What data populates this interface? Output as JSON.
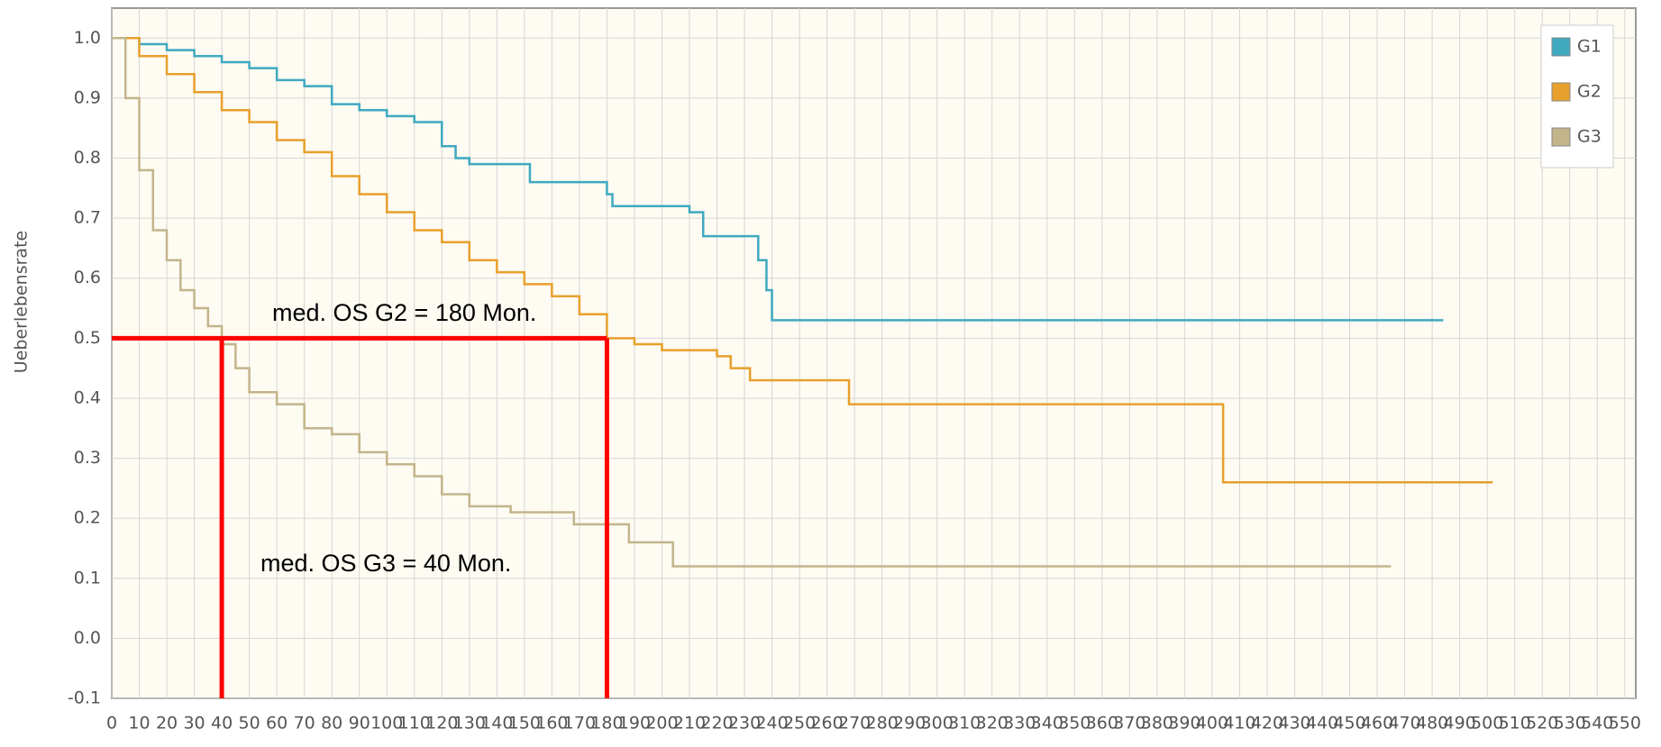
{
  "chart_data": {
    "type": "line",
    "y_label": "Ueberlebensrate",
    "xlim": [
      0,
      554
    ],
    "ylim": [
      -0.1,
      1.05
    ],
    "xticks": [
      0,
      10,
      20,
      30,
      40,
      50,
      60,
      70,
      80,
      90,
      100,
      110,
      120,
      130,
      140,
      150,
      160,
      170,
      180,
      190,
      200,
      210,
      220,
      230,
      240,
      250,
      260,
      270,
      280,
      290,
      300,
      310,
      320,
      330,
      340,
      350,
      360,
      370,
      380,
      390,
      400,
      410,
      420,
      430,
      440,
      450,
      460,
      470,
      480,
      490,
      500,
      510,
      520,
      530,
      540,
      550
    ],
    "yticks": [
      -0.1,
      {
        "value": 0,
        "label": "0.0"
      },
      0.1,
      0.2,
      0.3,
      0.4,
      0.5,
      0.6,
      0.7,
      0.8,
      0.9,
      {
        "value": 1,
        "label": "1.0"
      }
    ],
    "grid": true,
    "legend": "top-right",
    "step": true,
    "series": [
      {
        "name": "G1",
        "color": "#3fa9c0",
        "x": [
          0,
          10,
          20,
          30,
          40,
          50,
          60,
          70,
          80,
          90,
          100,
          110,
          120,
          125,
          130,
          150,
          152,
          170,
          180,
          182,
          210,
          215,
          230,
          235,
          238,
          240,
          484
        ],
        "values": [
          1.0,
          0.99,
          0.98,
          0.97,
          0.96,
          0.95,
          0.93,
          0.92,
          0.89,
          0.88,
          0.87,
          0.86,
          0.82,
          0.8,
          0.79,
          0.79,
          0.76,
          0.76,
          0.74,
          0.72,
          0.71,
          0.67,
          0.67,
          0.63,
          0.58,
          0.53,
          0.53
        ]
      },
      {
        "name": "G2",
        "color": "#e8a02c",
        "x": [
          0,
          10,
          20,
          30,
          40,
          50,
          60,
          70,
          80,
          90,
          100,
          110,
          120,
          130,
          140,
          150,
          160,
          170,
          180,
          190,
          200,
          220,
          225,
          232,
          266,
          268,
          403,
          404,
          502
        ],
        "values": [
          1.0,
          0.97,
          0.94,
          0.91,
          0.88,
          0.86,
          0.83,
          0.81,
          0.77,
          0.74,
          0.71,
          0.68,
          0.66,
          0.63,
          0.61,
          0.59,
          0.57,
          0.54,
          0.5,
          0.49,
          0.48,
          0.47,
          0.45,
          0.43,
          0.43,
          0.39,
          0.39,
          0.26,
          0.26
        ]
      },
      {
        "name": "G3",
        "color": "#c3b48a",
        "x": [
          0,
          5,
          10,
          15,
          20,
          25,
          30,
          35,
          40,
          45,
          50,
          60,
          70,
          80,
          90,
          100,
          110,
          120,
          130,
          145,
          165,
          168,
          187,
          188,
          203,
          204,
          465
        ],
        "values": [
          1.0,
          0.9,
          0.78,
          0.68,
          0.63,
          0.58,
          0.55,
          0.52,
          0.49,
          0.45,
          0.41,
          0.39,
          0.35,
          0.34,
          0.31,
          0.29,
          0.27,
          0.24,
          0.22,
          0.21,
          0.21,
          0.19,
          0.19,
          0.16,
          0.16,
          0.12,
          0.12
        ]
      }
    ],
    "median_lines": {
      "color": "#ff0000",
      "y": 0.5,
      "x": [
        40,
        180
      ]
    },
    "annotations": [
      "med. OS G2 = 180 Mon.",
      "med. OS G3 = 40 Mon."
    ]
  }
}
